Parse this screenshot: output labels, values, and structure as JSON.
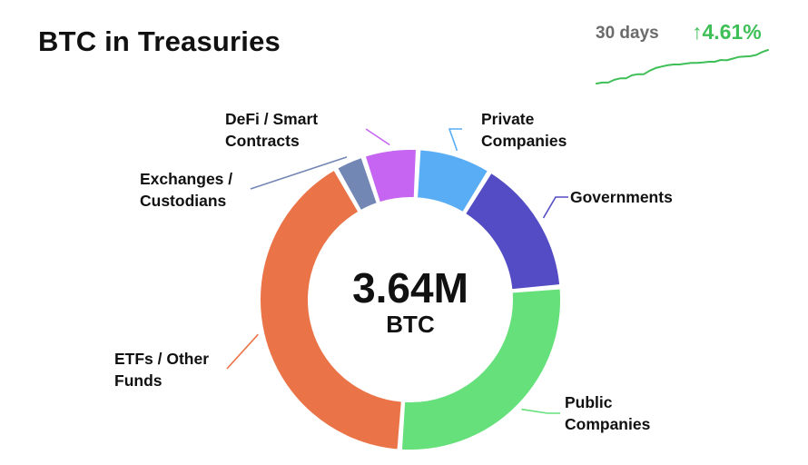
{
  "header": {
    "title": "BTC in Treasuries",
    "period": "30 days",
    "change": "↑4.61%"
  },
  "colors": {
    "up": "#3fbf57"
  },
  "chart_data": [
    {
      "type": "pie",
      "title": "",
      "center_value": "3.64M",
      "center_unit": "BTC",
      "categories": [
        "Private Companies",
        "Governments",
        "Public Companies",
        "ETFs / Other Funds",
        "Exchanges / Custodians",
        "DeFi / Smart Contracts"
      ],
      "values": [
        8.0,
        14.8,
        27.5,
        40.6,
        3.2,
        5.9
      ],
      "colors": [
        "#58adf5",
        "#534cc4",
        "#66e07a",
        "#ea7447",
        "#7387b5",
        "#c565f2"
      ]
    },
    {
      "type": "line",
      "title": "30 days",
      "values": [
        0.0,
        0.05,
        0.05,
        0.18,
        0.25,
        0.25,
        0.4,
        0.45,
        0.45,
        0.62,
        0.75,
        0.82,
        0.88,
        0.92,
        0.92,
        0.96,
        1.0,
        1.0,
        1.02,
        1.05,
        1.05,
        1.14,
        1.12,
        1.2,
        1.28,
        1.3,
        1.32,
        1.38,
        1.52,
        1.62
      ],
      "color": "#3fbf57"
    }
  ]
}
